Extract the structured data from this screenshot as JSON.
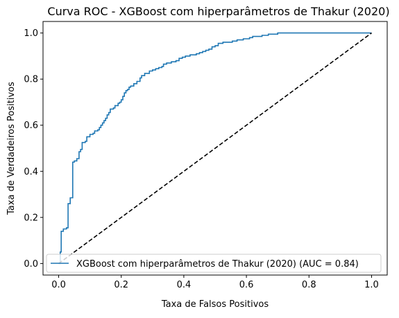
{
  "chart_data": {
    "type": "line",
    "title": "Curva ROC - XGBoost com hiperparâmetros de Thakur (2020)",
    "xlabel": "Taxa de Falsos Positivos",
    "ylabel": "Taxa de Verdadeiros Positivos",
    "xlim": [
      -0.05,
      1.05
    ],
    "ylim": [
      -0.05,
      1.05
    ],
    "x_ticks": [
      "0.0",
      "0.2",
      "0.4",
      "0.6",
      "0.8",
      "1.0"
    ],
    "y_ticks": [
      "0.0",
      "0.2",
      "0.4",
      "0.6",
      "0.8",
      "1.0"
    ],
    "grid": false,
    "legend_position": "lower-right",
    "series": [
      {
        "name": "XGBoost com hiperparâmetros de Thakur (2020) (AUC = 0.84)",
        "color": "#1f77b4",
        "style": "step",
        "points": [
          [
            0.0,
            0.0
          ],
          [
            0.005,
            0.0
          ],
          [
            0.005,
            0.05
          ],
          [
            0.008,
            0.05
          ],
          [
            0.008,
            0.14
          ],
          [
            0.015,
            0.14
          ],
          [
            0.015,
            0.15
          ],
          [
            0.025,
            0.15
          ],
          [
            0.025,
            0.155
          ],
          [
            0.03,
            0.155
          ],
          [
            0.03,
            0.26
          ],
          [
            0.037,
            0.26
          ],
          [
            0.037,
            0.285
          ],
          [
            0.045,
            0.285
          ],
          [
            0.045,
            0.44
          ],
          [
            0.05,
            0.44
          ],
          [
            0.05,
            0.445
          ],
          [
            0.058,
            0.445
          ],
          [
            0.058,
            0.455
          ],
          [
            0.065,
            0.455
          ],
          [
            0.065,
            0.485
          ],
          [
            0.07,
            0.485
          ],
          [
            0.07,
            0.495
          ],
          [
            0.075,
            0.495
          ],
          [
            0.075,
            0.525
          ],
          [
            0.085,
            0.525
          ],
          [
            0.085,
            0.53
          ],
          [
            0.09,
            0.53
          ],
          [
            0.09,
            0.55
          ],
          [
            0.1,
            0.55
          ],
          [
            0.1,
            0.56
          ],
          [
            0.11,
            0.56
          ],
          [
            0.11,
            0.565
          ],
          [
            0.115,
            0.565
          ],
          [
            0.115,
            0.575
          ],
          [
            0.125,
            0.575
          ],
          [
            0.125,
            0.58
          ],
          [
            0.13,
            0.58
          ],
          [
            0.13,
            0.59
          ],
          [
            0.135,
            0.59
          ],
          [
            0.135,
            0.6
          ],
          [
            0.14,
            0.6
          ],
          [
            0.14,
            0.61
          ],
          [
            0.145,
            0.61
          ],
          [
            0.145,
            0.62
          ],
          [
            0.15,
            0.62
          ],
          [
            0.15,
            0.63
          ],
          [
            0.155,
            0.63
          ],
          [
            0.155,
            0.645
          ],
          [
            0.16,
            0.645
          ],
          [
            0.16,
            0.655
          ],
          [
            0.165,
            0.655
          ],
          [
            0.165,
            0.67
          ],
          [
            0.175,
            0.67
          ],
          [
            0.175,
            0.675
          ],
          [
            0.18,
            0.675
          ],
          [
            0.18,
            0.685
          ],
          [
            0.19,
            0.685
          ],
          [
            0.19,
            0.695
          ],
          [
            0.195,
            0.695
          ],
          [
            0.195,
            0.7
          ],
          [
            0.2,
            0.7
          ],
          [
            0.2,
            0.71
          ],
          [
            0.205,
            0.71
          ],
          [
            0.205,
            0.725
          ],
          [
            0.21,
            0.725
          ],
          [
            0.21,
            0.74
          ],
          [
            0.215,
            0.74
          ],
          [
            0.215,
            0.75
          ],
          [
            0.22,
            0.75
          ],
          [
            0.22,
            0.755
          ],
          [
            0.225,
            0.755
          ],
          [
            0.225,
            0.765
          ],
          [
            0.23,
            0.765
          ],
          [
            0.23,
            0.77
          ],
          [
            0.24,
            0.77
          ],
          [
            0.24,
            0.78
          ],
          [
            0.25,
            0.78
          ],
          [
            0.25,
            0.79
          ],
          [
            0.26,
            0.79
          ],
          [
            0.26,
            0.805
          ],
          [
            0.265,
            0.805
          ],
          [
            0.265,
            0.815
          ],
          [
            0.275,
            0.815
          ],
          [
            0.275,
            0.825
          ],
          [
            0.29,
            0.825
          ],
          [
            0.29,
            0.835
          ],
          [
            0.3,
            0.835
          ],
          [
            0.3,
            0.84
          ],
          [
            0.31,
            0.84
          ],
          [
            0.31,
            0.845
          ],
          [
            0.32,
            0.845
          ],
          [
            0.32,
            0.85
          ],
          [
            0.33,
            0.85
          ],
          [
            0.33,
            0.855
          ],
          [
            0.335,
            0.855
          ],
          [
            0.335,
            0.865
          ],
          [
            0.345,
            0.865
          ],
          [
            0.345,
            0.87
          ],
          [
            0.36,
            0.87
          ],
          [
            0.36,
            0.875
          ],
          [
            0.375,
            0.875
          ],
          [
            0.375,
            0.88
          ],
          [
            0.385,
            0.88
          ],
          [
            0.385,
            0.89
          ],
          [
            0.395,
            0.89
          ],
          [
            0.395,
            0.895
          ],
          [
            0.405,
            0.895
          ],
          [
            0.405,
            0.9
          ],
          [
            0.42,
            0.9
          ],
          [
            0.42,
            0.905
          ],
          [
            0.44,
            0.905
          ],
          [
            0.44,
            0.91
          ],
          [
            0.45,
            0.91
          ],
          [
            0.45,
            0.915
          ],
          [
            0.46,
            0.915
          ],
          [
            0.46,
            0.92
          ],
          [
            0.47,
            0.92
          ],
          [
            0.47,
            0.925
          ],
          [
            0.48,
            0.925
          ],
          [
            0.48,
            0.93
          ],
          [
            0.49,
            0.93
          ],
          [
            0.49,
            0.94
          ],
          [
            0.5,
            0.94
          ],
          [
            0.5,
            0.945
          ],
          [
            0.51,
            0.945
          ],
          [
            0.51,
            0.955
          ],
          [
            0.525,
            0.955
          ],
          [
            0.525,
            0.96
          ],
          [
            0.555,
            0.96
          ],
          [
            0.555,
            0.965
          ],
          [
            0.57,
            0.965
          ],
          [
            0.57,
            0.97
          ],
          [
            0.59,
            0.97
          ],
          [
            0.59,
            0.975
          ],
          [
            0.61,
            0.975
          ],
          [
            0.61,
            0.98
          ],
          [
            0.62,
            0.98
          ],
          [
            0.62,
            0.985
          ],
          [
            0.65,
            0.985
          ],
          [
            0.65,
            0.99
          ],
          [
            0.67,
            0.99
          ],
          [
            0.67,
            0.995
          ],
          [
            0.7,
            0.995
          ],
          [
            0.7,
            1.0
          ],
          [
            1.0,
            1.0
          ]
        ]
      },
      {
        "name": "",
        "color": "#000000",
        "style": "dashed",
        "points": [
          [
            0.0,
            0.0
          ],
          [
            1.0,
            1.0
          ]
        ]
      }
    ]
  }
}
